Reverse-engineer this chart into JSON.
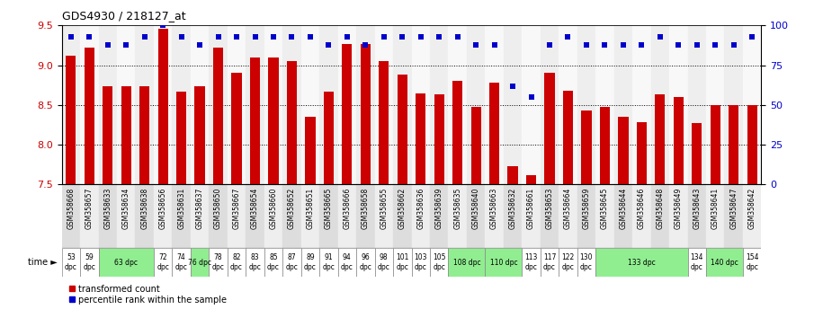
{
  "title": "GDS4930 / 218127_at",
  "samples": [
    "GSM358668",
    "GSM358657",
    "GSM358633",
    "GSM358634",
    "GSM358638",
    "GSM358656",
    "GSM358631",
    "GSM358637",
    "GSM358650",
    "GSM358667",
    "GSM358654",
    "GSM358660",
    "GSM358652",
    "GSM358651",
    "GSM358665",
    "GSM358666",
    "GSM358658",
    "GSM358655",
    "GSM358662",
    "GSM358636",
    "GSM358639",
    "GSM358635",
    "GSM358640",
    "GSM358663",
    "GSM358632",
    "GSM358661",
    "GSM358653",
    "GSM358664",
    "GSM358659",
    "GSM358645",
    "GSM358644",
    "GSM358646",
    "GSM358648",
    "GSM358649",
    "GSM358643",
    "GSM358641",
    "GSM358647",
    "GSM358642"
  ],
  "bar_values": [
    9.12,
    9.22,
    8.73,
    8.73,
    8.73,
    9.46,
    8.67,
    8.73,
    9.22,
    8.9,
    9.1,
    9.1,
    9.05,
    8.35,
    8.67,
    9.27,
    9.27,
    9.05,
    8.88,
    8.65,
    8.63,
    8.8,
    8.47,
    8.78,
    7.73,
    7.62,
    8.9,
    8.68,
    8.43,
    8.47,
    8.35,
    8.28,
    8.63,
    8.6,
    8.27,
    8.5,
    8.5,
    8.5
  ],
  "percentile_values": [
    93,
    93,
    88,
    88,
    93,
    100,
    93,
    88,
    93,
    93,
    93,
    93,
    93,
    93,
    88,
    93,
    88,
    93,
    93,
    93,
    93,
    93,
    88,
    88,
    62,
    55,
    88,
    93,
    88,
    88,
    88,
    88,
    93,
    88,
    88,
    88,
    88,
    93
  ],
  "bar_color": "#CC0000",
  "percentile_color": "#0000CC",
  "ylim": [
    7.5,
    9.5
  ],
  "y2lim": [
    0,
    100
  ],
  "yticks": [
    7.5,
    8.0,
    8.5,
    9.0,
    9.5
  ],
  "y2ticks": [
    0,
    25,
    50,
    75,
    100
  ],
  "group_spans": [
    {
      "start": 0,
      "end": 0,
      "label": "53\ndpc",
      "bg": "#ffffff"
    },
    {
      "start": 1,
      "end": 1,
      "label": "59\ndpc",
      "bg": "#ffffff"
    },
    {
      "start": 2,
      "end": 4,
      "label": "63 dpc",
      "bg": "#90EE90"
    },
    {
      "start": 5,
      "end": 5,
      "label": "72\ndpc",
      "bg": "#ffffff"
    },
    {
      "start": 6,
      "end": 6,
      "label": "74\ndpc",
      "bg": "#ffffff"
    },
    {
      "start": 7,
      "end": 7,
      "label": "76 dpc",
      "bg": "#90EE90"
    },
    {
      "start": 8,
      "end": 8,
      "label": "78\ndpc",
      "bg": "#ffffff"
    },
    {
      "start": 9,
      "end": 9,
      "label": "82\ndpc",
      "bg": "#ffffff"
    },
    {
      "start": 10,
      "end": 10,
      "label": "83\ndpc",
      "bg": "#ffffff"
    },
    {
      "start": 11,
      "end": 11,
      "label": "85\ndpc",
      "bg": "#ffffff"
    },
    {
      "start": 12,
      "end": 12,
      "label": "87\ndpc",
      "bg": "#ffffff"
    },
    {
      "start": 13,
      "end": 13,
      "label": "89\ndpc",
      "bg": "#ffffff"
    },
    {
      "start": 14,
      "end": 14,
      "label": "91\ndpc",
      "bg": "#ffffff"
    },
    {
      "start": 15,
      "end": 15,
      "label": "94\ndpc",
      "bg": "#ffffff"
    },
    {
      "start": 16,
      "end": 16,
      "label": "96\ndpc",
      "bg": "#ffffff"
    },
    {
      "start": 17,
      "end": 17,
      "label": "98\ndpc",
      "bg": "#ffffff"
    },
    {
      "start": 18,
      "end": 18,
      "label": "101\ndpc",
      "bg": "#ffffff"
    },
    {
      "start": 19,
      "end": 19,
      "label": "103\ndpc",
      "bg": "#ffffff"
    },
    {
      "start": 20,
      "end": 20,
      "label": "105\ndpc",
      "bg": "#ffffff"
    },
    {
      "start": 21,
      "end": 22,
      "label": "108 dpc",
      "bg": "#90EE90"
    },
    {
      "start": 23,
      "end": 24,
      "label": "110 dpc",
      "bg": "#90EE90"
    },
    {
      "start": 25,
      "end": 25,
      "label": "113\ndpc",
      "bg": "#ffffff"
    },
    {
      "start": 26,
      "end": 26,
      "label": "117\ndpc",
      "bg": "#ffffff"
    },
    {
      "start": 27,
      "end": 27,
      "label": "122\ndpc",
      "bg": "#ffffff"
    },
    {
      "start": 28,
      "end": 28,
      "label": "130\ndpc",
      "bg": "#ffffff"
    },
    {
      "start": 29,
      "end": 33,
      "label": "133 dpc",
      "bg": "#90EE90"
    },
    {
      "start": 34,
      "end": 34,
      "label": "134\ndpc",
      "bg": "#ffffff"
    },
    {
      "start": 35,
      "end": 36,
      "label": "140 dpc",
      "bg": "#90EE90"
    },
    {
      "start": 37,
      "end": 37,
      "label": "154\ndpc",
      "bg": "#ffffff"
    }
  ]
}
